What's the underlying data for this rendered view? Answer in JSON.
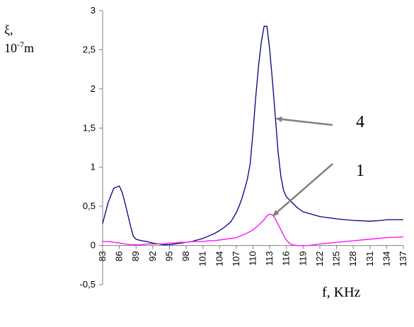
{
  "chart_data": {
    "type": "line",
    "ylabel_symbol": "ξ,",
    "ylabel_unit_base": "10",
    "ylabel_unit_exp": "-7",
    "ylabel_unit_suffix": "m",
    "xlabel": "f, KHz",
    "ylim": [
      -0.5,
      3
    ],
    "y_ticks": [
      {
        "value": -0.5,
        "label": "-0,5"
      },
      {
        "value": 0,
        "label": "0"
      },
      {
        "value": 0.5,
        "label": "0,5"
      },
      {
        "value": 1,
        "label": "1"
      },
      {
        "value": 1.5,
        "label": "1,5"
      },
      {
        "value": 2,
        "label": "2"
      },
      {
        "value": 2.5,
        "label": "2,5"
      },
      {
        "value": 3,
        "label": "3"
      }
    ],
    "xlim": [
      83,
      137
    ],
    "x_tick_labels": [
      "83",
      "86",
      "89",
      "92",
      "95",
      "98",
      "101",
      "104",
      "107",
      "110",
      "113",
      "116",
      "119",
      "122",
      "125",
      "128",
      "131",
      "134",
      "137"
    ],
    "grid": false,
    "series": [
      {
        "name": "4",
        "color": "#000080",
        "x": [
          83,
          84,
          85,
          86,
          86.5,
          87,
          88,
          88.5,
          89,
          90,
          91,
          92,
          93,
          94,
          95,
          96,
          97,
          98,
          99,
          100,
          101,
          102,
          103,
          104,
          105,
          106,
          107,
          107.5,
          108,
          108.5,
          109,
          109.5,
          110,
          110.5,
          111,
          111.5,
          112,
          112.5,
          113,
          113.5,
          114,
          114.5,
          115,
          115.5,
          116,
          117,
          118,
          119,
          120,
          122,
          125,
          128,
          131,
          133,
          134,
          137
        ],
        "values": [
          0.28,
          0.55,
          0.73,
          0.76,
          0.68,
          0.55,
          0.25,
          0.12,
          0.08,
          0.06,
          0.05,
          0.03,
          0.02,
          0.01,
          0.01,
          0.02,
          0.03,
          0.04,
          0.05,
          0.07,
          0.09,
          0.12,
          0.15,
          0.19,
          0.24,
          0.3,
          0.42,
          0.5,
          0.6,
          0.72,
          0.85,
          1.05,
          1.45,
          1.9,
          2.3,
          2.6,
          2.8,
          2.8,
          2.5,
          2.1,
          1.65,
          1.2,
          0.88,
          0.7,
          0.62,
          0.55,
          0.48,
          0.43,
          0.41,
          0.37,
          0.34,
          0.32,
          0.31,
          0.32,
          0.33,
          0.33
        ]
      },
      {
        "name": "1",
        "color": "#ff00ff",
        "x": [
          83,
          84,
          85,
          86,
          87,
          88,
          89,
          90,
          91,
          92,
          93,
          94,
          95,
          96,
          97,
          98,
          99,
          100,
          101,
          102,
          103,
          104,
          105,
          106,
          107,
          108,
          109,
          110,
          111,
          112,
          112.5,
          113,
          113.5,
          114,
          114.5,
          115,
          115.5,
          116,
          116.5,
          117,
          118,
          119,
          120,
          122,
          125,
          128,
          131,
          134,
          137
        ],
        "values": [
          0.05,
          0.05,
          0.04,
          0.03,
          0.02,
          0.01,
          0.01,
          0.01,
          0.02,
          0.02,
          0.02,
          0.02,
          0.03,
          0.03,
          0.04,
          0.04,
          0.05,
          0.05,
          0.05,
          0.06,
          0.06,
          0.07,
          0.08,
          0.09,
          0.1,
          0.13,
          0.16,
          0.2,
          0.26,
          0.33,
          0.38,
          0.4,
          0.39,
          0.34,
          0.27,
          0.2,
          0.13,
          0.07,
          0.03,
          0.01,
          0.0,
          0.0,
          0.0,
          0.02,
          0.04,
          0.06,
          0.08,
          0.1,
          0.11
        ]
      }
    ],
    "annotations": [
      {
        "label": "4",
        "target_x": 114.2,
        "target_y": 1.62
      },
      {
        "label": "1",
        "target_x": 113.6,
        "target_y": 0.38
      }
    ]
  }
}
